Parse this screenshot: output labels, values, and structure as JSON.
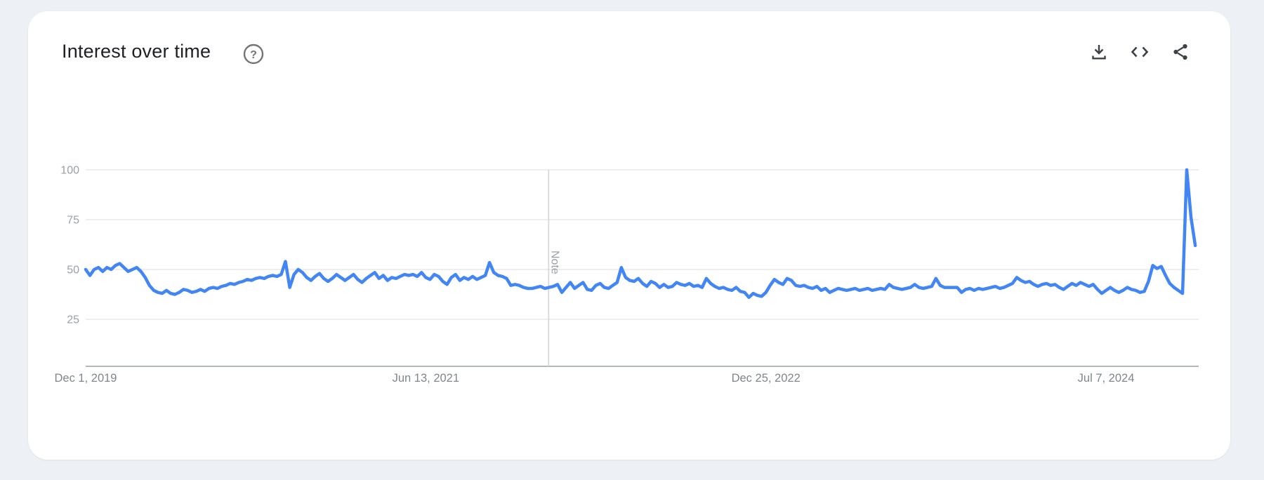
{
  "header": {
    "title": "Interest over time",
    "actions": [
      {
        "name": "download",
        "icon": "download-icon"
      },
      {
        "name": "embed",
        "icon": "code-embed-icon"
      },
      {
        "name": "share",
        "icon": "share-icon"
      }
    ],
    "help_icon": "help-circle-icon"
  },
  "chart_data": {
    "type": "line",
    "title": "Interest over time",
    "xlabel": "",
    "ylabel": "",
    "ylim": [
      0,
      100
    ],
    "grid": true,
    "y_ticks": [
      25,
      50,
      75,
      100
    ],
    "x_tick_labels": [
      "Dec 1, 2019",
      "Jun 13, 2021",
      "Dec 25, 2022",
      "Jul 7, 2024"
    ],
    "x_tick_weeks": [
      0,
      80,
      160,
      240
    ],
    "x_unit": "weeks since Dec 1, 2019 (weekly series, 5-year window)",
    "note_label": "Note",
    "note_week": 108.9,
    "line_color": "#4285f4",
    "grid_color": "#e8e8e8",
    "axis_line_color": "#9aa0a6",
    "axis_label_color": "#9aa0a6",
    "x_label_color": "#80868b",
    "note_color": "#9aa0a6",
    "note_line_color": "#d5d5d5",
    "values": [
      50,
      47,
      50,
      51,
      49,
      51,
      50,
      52,
      53,
      51,
      49,
      50,
      51,
      49,
      46,
      42,
      39.5,
      38.5,
      38,
      39.5,
      38,
      37.5,
      38.5,
      40,
      39.5,
      38.5,
      39,
      40,
      39,
      40.5,
      41,
      40.5,
      41.5,
      42,
      43,
      42.5,
      43.5,
      44,
      45,
      44.5,
      45.5,
      46,
      45.5,
      46.5,
      47,
      46.5,
      47.5,
      54,
      41,
      47.5,
      50,
      48.5,
      46,
      44.5,
      46.5,
      48,
      45.5,
      44,
      45.5,
      47.5,
      46,
      44.5,
      46,
      47.5,
      45,
      43.5,
      45.5,
      47,
      48.5,
      45.5,
      47,
      44.5,
      46,
      45.5,
      46.5,
      47.5,
      47,
      47.5,
      46.5,
      48.5,
      46,
      45,
      47.5,
      46.5,
      44,
      42.5,
      46,
      47.5,
      44.5,
      46,
      45,
      46.5,
      45,
      46,
      47,
      53.5,
      48.5,
      47,
      46.5,
      45.5,
      42,
      42.5,
      42,
      41,
      40.5,
      40.5,
      41,
      41.5,
      40.5,
      41,
      41.5,
      42.5,
      38.5,
      41,
      43.5,
      40.5,
      42,
      43.5,
      40,
      39.5,
      42,
      43,
      41,
      40.5,
      42,
      43.5,
      51,
      46,
      44.5,
      44,
      45.5,
      43,
      41.5,
      44,
      43,
      41,
      42.5,
      41,
      41.5,
      43.5,
      42.5,
      42,
      43,
      41.5,
      42,
      41,
      45.5,
      43,
      41.5,
      40.5,
      41,
      40,
      39.5,
      41,
      39,
      38.5,
      36,
      38,
      37,
      36.5,
      38.5,
      42,
      45,
      43.5,
      42.5,
      45.5,
      44.5,
      42,
      41.5,
      42,
      41,
      40.5,
      41.5,
      39.5,
      40.5,
      38.5,
      39.5,
      40.5,
      40,
      39.5,
      40,
      40.5,
      39.5,
      40,
      40.5,
      39.5,
      40,
      40.5,
      40,
      42.5,
      41,
      40.5,
      40,
      40.5,
      41,
      42.5,
      41,
      40.5,
      41,
      41.5,
      45.5,
      42,
      41,
      41,
      41,
      41,
      38.5,
      40,
      40.5,
      39.5,
      40.5,
      40,
      40.5,
      41,
      41.5,
      40.5,
      41,
      42,
      43,
      46,
      44.5,
      43.5,
      44,
      42.5,
      41.5,
      42.5,
      43,
      42,
      42.5,
      41,
      40,
      41.5,
      43,
      42,
      43.5,
      42.5,
      41.5,
      42.5,
      40,
      38,
      39.5,
      41,
      39.5,
      38.5,
      39.5,
      41,
      40,
      39.5,
      38.5,
      39,
      44,
      52,
      50.5,
      51.5,
      47,
      43,
      41,
      39.5,
      38,
      100,
      76,
      62
    ]
  }
}
